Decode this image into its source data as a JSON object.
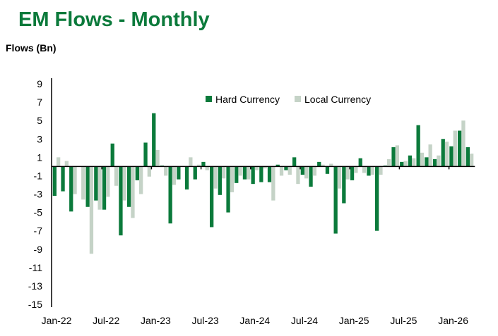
{
  "chart_data": {
    "type": "bar",
    "title": "EM Flows - Monthly",
    "ylabel": "Flows (Bn)",
    "xlabel": "",
    "ylim": [
      -15,
      9
    ],
    "yticks": [
      9,
      7,
      5,
      3,
      1,
      -1,
      -3,
      -5,
      -7,
      -9,
      -11,
      -13,
      -15
    ],
    "xtick_labels": [
      "Jan-22",
      "Jul-22",
      "Jan-23",
      "Jul-23",
      "Jan-24",
      "Jul-24",
      "Jan-25",
      "Jul-25",
      "Jan-26"
    ],
    "legend": "top-center",
    "grid": false,
    "categories": [
      "Jan-22",
      "Feb-22",
      "Mar-22",
      "Apr-22",
      "May-22",
      "Jun-22",
      "Jul-22",
      "Aug-22",
      "Sep-22",
      "Oct-22",
      "Nov-22",
      "Dec-22",
      "Jan-23",
      "Feb-23",
      "Mar-23",
      "Apr-23",
      "May-23",
      "Jun-23",
      "Jul-23",
      "Aug-23",
      "Sep-23",
      "Oct-23",
      "Nov-23",
      "Dec-23",
      "Jan-24",
      "Feb-24",
      "Mar-24",
      "Apr-24",
      "May-24",
      "Jun-24",
      "Jul-24",
      "Aug-24",
      "Sep-24",
      "Oct-24",
      "Nov-24",
      "Dec-24",
      "Jan-25",
      "Feb-25",
      "Mar-25",
      "Apr-25",
      "May-25",
      "Jun-25",
      "Jul-25",
      "Aug-25",
      "Sep-25",
      "Oct-25",
      "Nov-25",
      "Dec-25",
      "Jan-26",
      "Feb-26",
      "Mar-26"
    ],
    "series": [
      {
        "name": "Hard Currency",
        "color": "#0b7a3b",
        "values": [
          -3.2,
          -2.7,
          -4.9,
          0,
          -4.4,
          -3.7,
          -4.7,
          2.5,
          -7.5,
          -4.4,
          -1.5,
          2.6,
          5.8,
          0.1,
          -6.2,
          -1.4,
          -2.5,
          -1.4,
          0.5,
          -6.6,
          -3.1,
          -5.0,
          -1.8,
          -1.4,
          -1.9,
          -1.7,
          -1.7,
          0.2,
          -0.4,
          1.0,
          -0.9,
          -2.2,
          0.5,
          -0.8,
          -7.3,
          -4.0,
          -1.5,
          0.9,
          -1.0,
          -7.0,
          0.1,
          2.1,
          0.5,
          1.2,
          4.5,
          1.0,
          0.8,
          3.0,
          2.2,
          3.9,
          2.1
        ]
      },
      {
        "name": "Local Currency",
        "color": "#c5d3c7",
        "values": [
          1.0,
          0.6,
          -3.0,
          -3.6,
          -9.5,
          -4.7,
          -3.3,
          -2.1,
          -3.7,
          -5.6,
          -3.0,
          -1.1,
          1.8,
          -1.0,
          -2.0,
          0.05,
          1.0,
          0.2,
          -0.4,
          -2.4,
          -1.3,
          -2.8,
          -1.0,
          -1.4,
          -0.4,
          -0.2,
          -3.7,
          -1.0,
          -0.9,
          -1.9,
          -1.3,
          -1.0,
          0.2,
          0.3,
          -2.4,
          -1.4,
          -0.7,
          -0.7,
          -0.9,
          -0.9,
          0.8,
          2.3,
          0.6,
          0.9,
          1.5,
          2.4,
          1.2,
          2.7,
          3.9,
          5.0,
          1.4
        ]
      }
    ]
  }
}
